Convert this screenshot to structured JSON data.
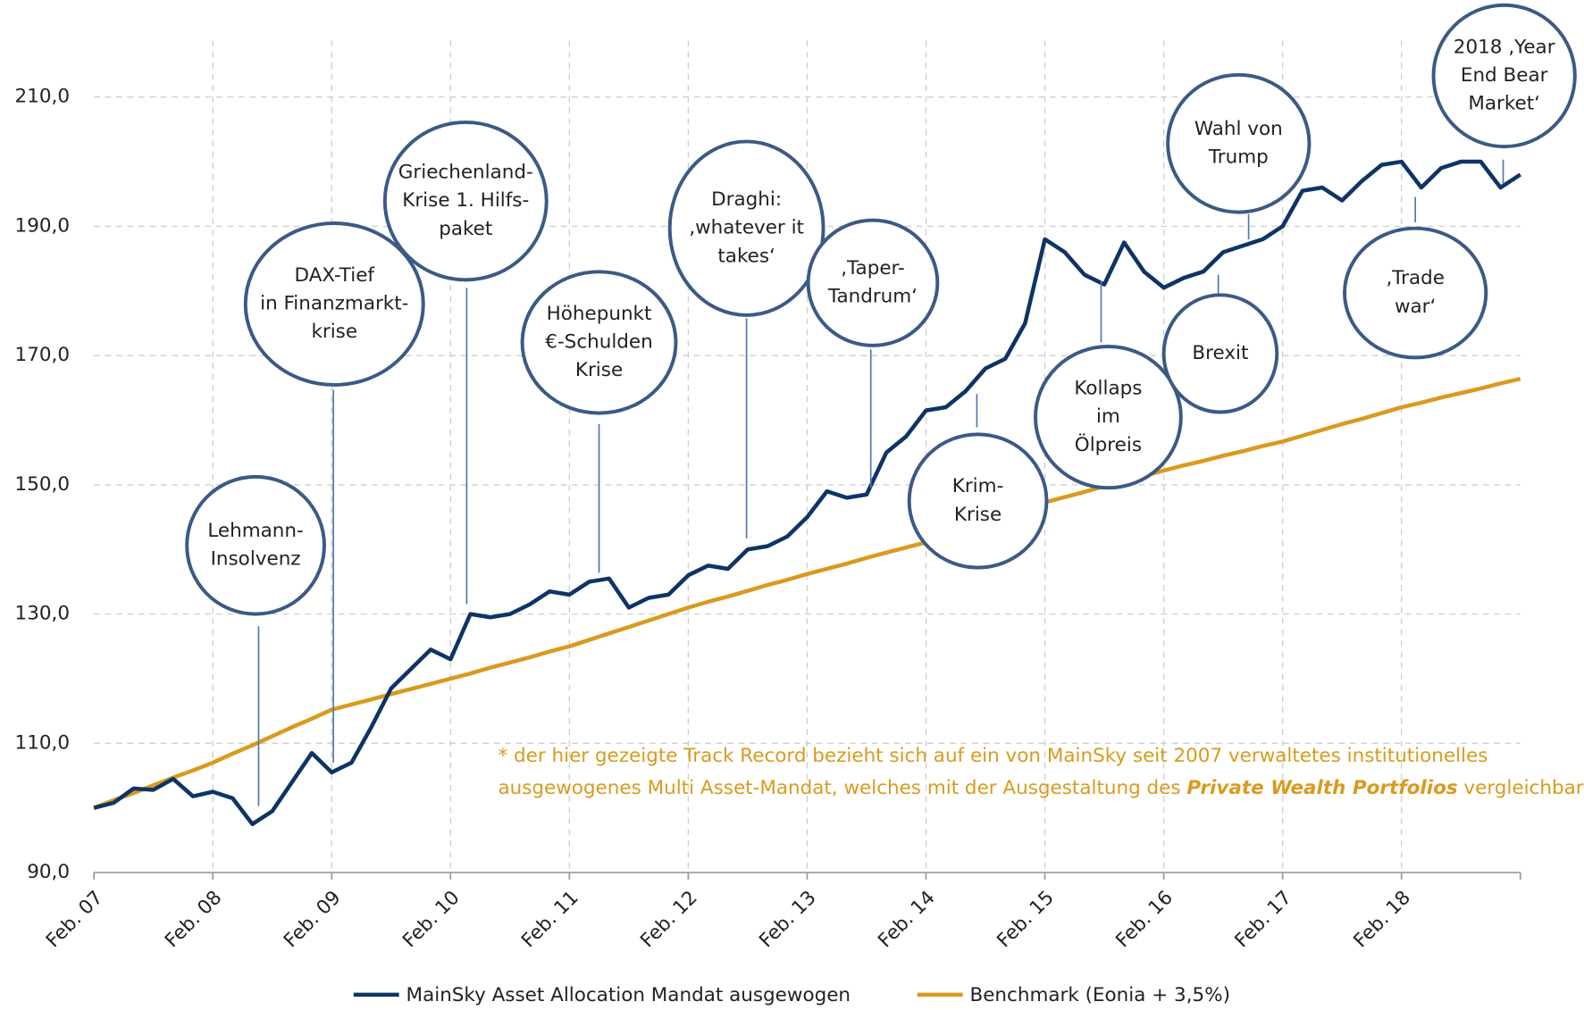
{
  "chart_data": {
    "type": "line",
    "categories": [
      "Feb. 07",
      null,
      null,
      null,
      null,
      null,
      "Feb. 08",
      null,
      null,
      null,
      null,
      null,
      "Feb. 09",
      null,
      null,
      null,
      null,
      null,
      "Feb. 10",
      null,
      null,
      null,
      null,
      null,
      "Feb. 11",
      null,
      null,
      null,
      null,
      null,
      "Feb. 12",
      null,
      null,
      null,
      null,
      null,
      "Feb. 13",
      null,
      null,
      null,
      null,
      null,
      "Feb. 14",
      null,
      null,
      null,
      null,
      null,
      "Feb. 15",
      null,
      null,
      null,
      null,
      null,
      "Feb. 16",
      null,
      null,
      null,
      null,
      null,
      "Feb. 17",
      null,
      null,
      null,
      null,
      null,
      "Feb. 18",
      null,
      null,
      null,
      null,
      null,
      null
    ],
    "series": [
      {
        "name": "MainSky Asset Allocation Mandat ausgewogen",
        "color": "#0e3466",
        "values": [
          100,
          100.8,
          103,
          102.8,
          104.5,
          101.8,
          102.5,
          101.5,
          97.5,
          99.5,
          104,
          108.5,
          105.5,
          107,
          112.5,
          118.5,
          121.5,
          124.5,
          123,
          130,
          129.5,
          130,
          131.5,
          133.5,
          133,
          135,
          135.5,
          131,
          132.5,
          133,
          136,
          137.5,
          137,
          140,
          140.5,
          142,
          145,
          149,
          148,
          148.5,
          155,
          157.5,
          161.5,
          162,
          164.5,
          168,
          169.5,
          175,
          188,
          186,
          182.5,
          181,
          187.5,
          183,
          180.5,
          182,
          183,
          186,
          187,
          188,
          190,
          195.5,
          196,
          194,
          197,
          199.5,
          200,
          196,
          199,
          200,
          200,
          196,
          198
        ]
      },
      {
        "name": "Benchmark (Eonia + 3,5%)",
        "color": "#d99a1e",
        "values": [
          100,
          101.2,
          102.3,
          103.5,
          104.7,
          105.8,
          107,
          108.4,
          109.7,
          111.1,
          112.5,
          113.8,
          115.2,
          116,
          116.8,
          117.6,
          118.4,
          119.2,
          120,
          120.8,
          121.7,
          122.5,
          123.3,
          124.2,
          125,
          126,
          127,
          128,
          129,
          130,
          131,
          131.9,
          132.7,
          133.6,
          134.5,
          135.3,
          136.2,
          137,
          137.8,
          138.7,
          139.5,
          140.3,
          141.1,
          142.1,
          143.2,
          144.2,
          145.2,
          146.3,
          147.3,
          148.1,
          148.9,
          149.8,
          150.6,
          151.4,
          152.2,
          153,
          153.7,
          154.5,
          155.2,
          156,
          156.7,
          157.6,
          158.5,
          159.4,
          160.2,
          161.1,
          162,
          162.7,
          163.5,
          164.2,
          164.9,
          165.7,
          166.4
        ]
      }
    ],
    "ylim": [
      90,
      210
    ],
    "yticks": [
      {
        "value": 90,
        "label": "90,0"
      },
      {
        "value": 110,
        "label": "110,0"
      },
      {
        "value": 130,
        "label": "130,0"
      },
      {
        "value": 150,
        "label": "150,0"
      },
      {
        "value": 170,
        "label": "170,0"
      },
      {
        "value": 190,
        "label": "190,0"
      },
      {
        "value": 210,
        "label": "210,0"
      }
    ],
    "grid": true,
    "annotations": [
      {
        "lines": [
          "Lehmann-",
          "Insolvenz"
        ]
      },
      {
        "lines": [
          "DAX-Tief",
          "in Finanzmarkt-",
          "krise"
        ]
      },
      {
        "lines": [
          "Griechenland-",
          "Krise 1. Hilfs-",
          "paket"
        ]
      },
      {
        "lines": [
          "Höhepunkt",
          "€-Schulden",
          "Krise"
        ]
      },
      {
        "lines": [
          "Draghi:",
          "‚whatever it",
          "takes‘"
        ]
      },
      {
        "lines": [
          "‚Taper-",
          "Tandrum‘"
        ]
      },
      {
        "lines": [
          "Krim-",
          "Krise"
        ]
      },
      {
        "lines": [
          "Kollaps",
          "im",
          "Ölpreis"
        ]
      },
      {
        "lines": [
          "Brexit"
        ]
      },
      {
        "lines": [
          "Wahl von",
          "Trump"
        ]
      },
      {
        "lines": [
          "‚Trade",
          "war‘"
        ]
      },
      {
        "lines": [
          "2018 ‚Year",
          "End Bear",
          "Market‘"
        ]
      }
    ],
    "footnote": {
      "line1": "* der hier gezeigte Track Record bezieht sich auf ein von MainSky seit 2007 verwaltetes institutionelles",
      "line2_pre": "ausgewogenes Multi Asset-Mandat, welches mit der Ausgestaltung des ",
      "line2_em": "Private Wealth Portfolios",
      "line2_post": " vergleichbar ist."
    }
  }
}
